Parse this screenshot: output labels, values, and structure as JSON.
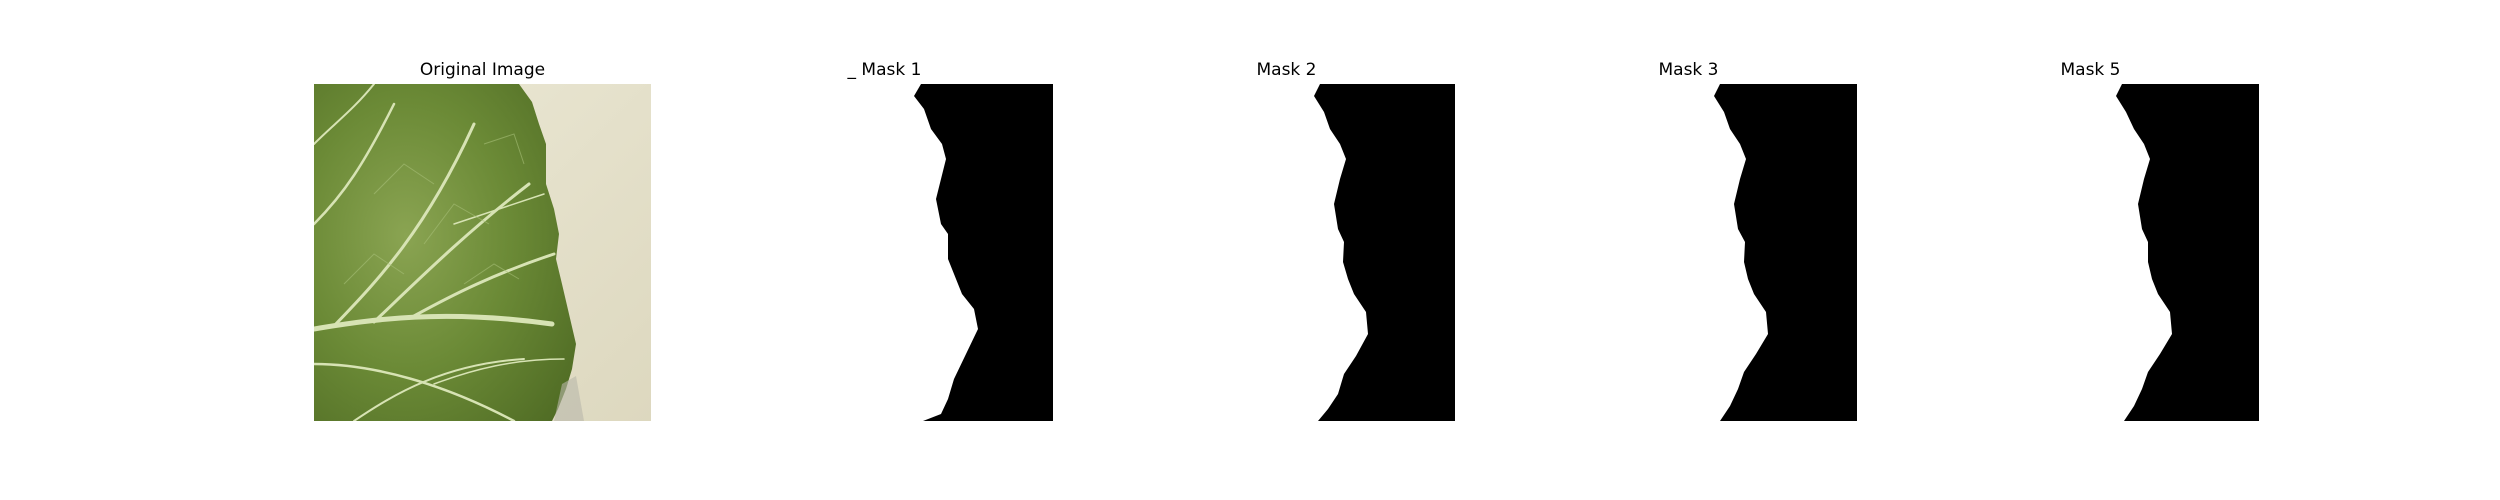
{
  "figure": {
    "panels": [
      {
        "title": "Original Image",
        "kind": "photo"
      },
      {
        "title": "_ Mask 1",
        "kind": "mask"
      },
      {
        "title": "Mask 2",
        "kind": "mask"
      },
      {
        "title": "Mask 3",
        "kind": "mask"
      },
      {
        "title": "Mask 5",
        "kind": "mask"
      }
    ]
  },
  "colors": {
    "background": "#ffffff",
    "mask_foreground": "#000000",
    "mask_background": "#ffffff",
    "leaf_green": "#6a8a3a",
    "backdrop": "#e6e2cc"
  }
}
